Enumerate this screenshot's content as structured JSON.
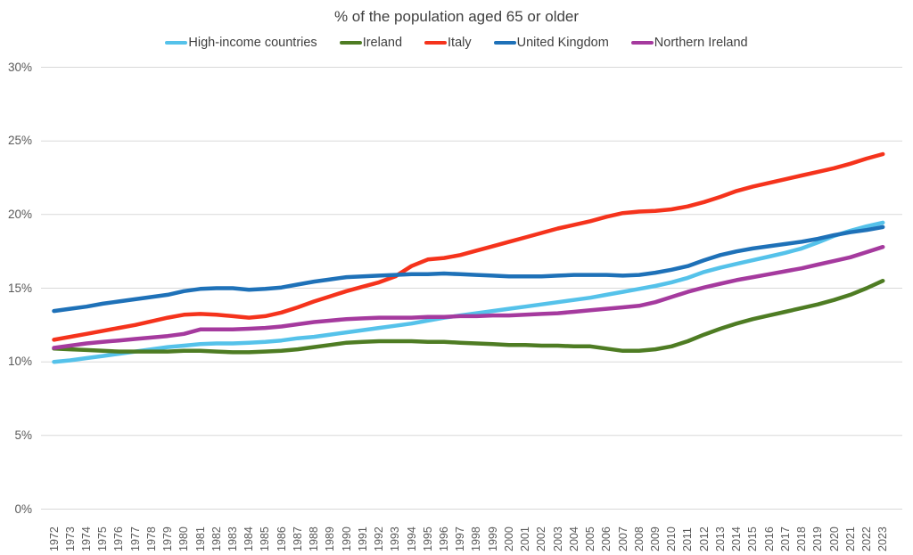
{
  "title": "% of the population aged 65 or older",
  "colors": {
    "background": "#FFFFFF",
    "grid": "#D9D9D9",
    "axis_text": "#595959",
    "title_text": "#3F3F3F",
    "legend_text": "#3F3F3F"
  },
  "chart_data": {
    "type": "line",
    "title": "% of the population aged 65 or older",
    "xlabel": "",
    "ylabel": "",
    "ylim": [
      0,
      30
    ],
    "y_ticks": [
      "0%",
      "5%",
      "10%",
      "15%",
      "20%",
      "25%",
      "30%"
    ],
    "grid": true,
    "legend_position": "top",
    "x": [
      1972,
      1973,
      1974,
      1975,
      1976,
      1977,
      1978,
      1979,
      1980,
      1981,
      1982,
      1983,
      1984,
      1985,
      1986,
      1987,
      1988,
      1989,
      1990,
      1991,
      1992,
      1993,
      1994,
      1995,
      1996,
      1997,
      1998,
      1999,
      2000,
      2001,
      2002,
      2003,
      2004,
      2005,
      2006,
      2007,
      2008,
      2009,
      2010,
      2011,
      2012,
      2013,
      2014,
      2015,
      2016,
      2017,
      2018,
      2019,
      2020,
      2021,
      2022,
      2023
    ],
    "series": [
      {
        "name": "High-income countries",
        "color": "#55C2EA",
        "values": [
          10.0,
          10.1,
          10.25,
          10.4,
          10.55,
          10.7,
          10.85,
          11.0,
          11.1,
          11.2,
          11.25,
          11.25,
          11.3,
          11.35,
          11.45,
          11.6,
          11.7,
          11.85,
          12.0,
          12.15,
          12.3,
          12.45,
          12.6,
          12.8,
          13.0,
          13.15,
          13.3,
          13.45,
          13.6,
          13.75,
          13.9,
          14.05,
          14.2,
          14.35,
          14.55,
          14.75,
          14.95,
          15.15,
          15.4,
          15.7,
          16.1,
          16.4,
          16.65,
          16.9,
          17.15,
          17.4,
          17.7,
          18.1,
          18.55,
          18.9,
          19.2,
          19.45
        ]
      },
      {
        "name": "Ireland",
        "color": "#4E7C23",
        "values": [
          10.9,
          10.85,
          10.8,
          10.75,
          10.7,
          10.7,
          10.7,
          10.7,
          10.75,
          10.75,
          10.7,
          10.65,
          10.65,
          10.7,
          10.75,
          10.85,
          11.0,
          11.15,
          11.3,
          11.35,
          11.4,
          11.4,
          11.4,
          11.35,
          11.35,
          11.3,
          11.25,
          11.2,
          11.15,
          11.15,
          11.1,
          11.1,
          11.05,
          11.05,
          10.9,
          10.75,
          10.75,
          10.85,
          11.05,
          11.4,
          11.85,
          12.25,
          12.6,
          12.9,
          13.15,
          13.4,
          13.65,
          13.9,
          14.2,
          14.55,
          15.0,
          15.5
        ]
      },
      {
        "name": "Italy",
        "color": "#F5331C",
        "values": [
          11.5,
          11.7,
          11.9,
          12.1,
          12.3,
          12.5,
          12.75,
          13.0,
          13.2,
          13.25,
          13.2,
          13.1,
          13.0,
          13.1,
          13.35,
          13.7,
          14.1,
          14.45,
          14.8,
          15.1,
          15.4,
          15.8,
          16.5,
          16.95,
          17.05,
          17.25,
          17.55,
          17.85,
          18.15,
          18.45,
          18.75,
          19.05,
          19.3,
          19.55,
          19.85,
          20.1,
          20.2,
          20.25,
          20.35,
          20.55,
          20.85,
          21.2,
          21.6,
          21.9,
          22.15,
          22.4,
          22.65,
          22.9,
          23.15,
          23.45,
          23.8,
          24.1
        ]
      },
      {
        "name": "United Kingdom",
        "color": "#1E71B8",
        "values": [
          13.45,
          13.6,
          13.75,
          13.95,
          14.1,
          14.25,
          14.4,
          14.55,
          14.8,
          14.95,
          15.0,
          15.0,
          14.9,
          14.95,
          15.05,
          15.25,
          15.45,
          15.6,
          15.75,
          15.8,
          15.85,
          15.9,
          15.95,
          15.95,
          16.0,
          15.95,
          15.9,
          15.85,
          15.8,
          15.8,
          15.8,
          15.85,
          15.9,
          15.9,
          15.9,
          15.85,
          15.9,
          16.05,
          16.25,
          16.5,
          16.9,
          17.25,
          17.5,
          17.7,
          17.85,
          18.0,
          18.15,
          18.35,
          18.6,
          18.8,
          18.95,
          19.15
        ]
      },
      {
        "name": "Northern Ireland",
        "color": "#A53A9E",
        "values": [
          10.95,
          11.1,
          11.25,
          11.35,
          11.45,
          11.55,
          11.65,
          11.75,
          11.9,
          12.2,
          12.2,
          12.2,
          12.25,
          12.3,
          12.4,
          12.55,
          12.7,
          12.8,
          12.9,
          12.95,
          13.0,
          13.0,
          13.0,
          13.05,
          13.05,
          13.1,
          13.1,
          13.15,
          13.15,
          13.2,
          13.25,
          13.3,
          13.4,
          13.5,
          13.6,
          13.7,
          13.8,
          14.05,
          14.4,
          14.75,
          15.05,
          15.3,
          15.55,
          15.75,
          15.95,
          16.15,
          16.35,
          16.6,
          16.85,
          17.1,
          17.45,
          17.8
        ]
      }
    ]
  }
}
